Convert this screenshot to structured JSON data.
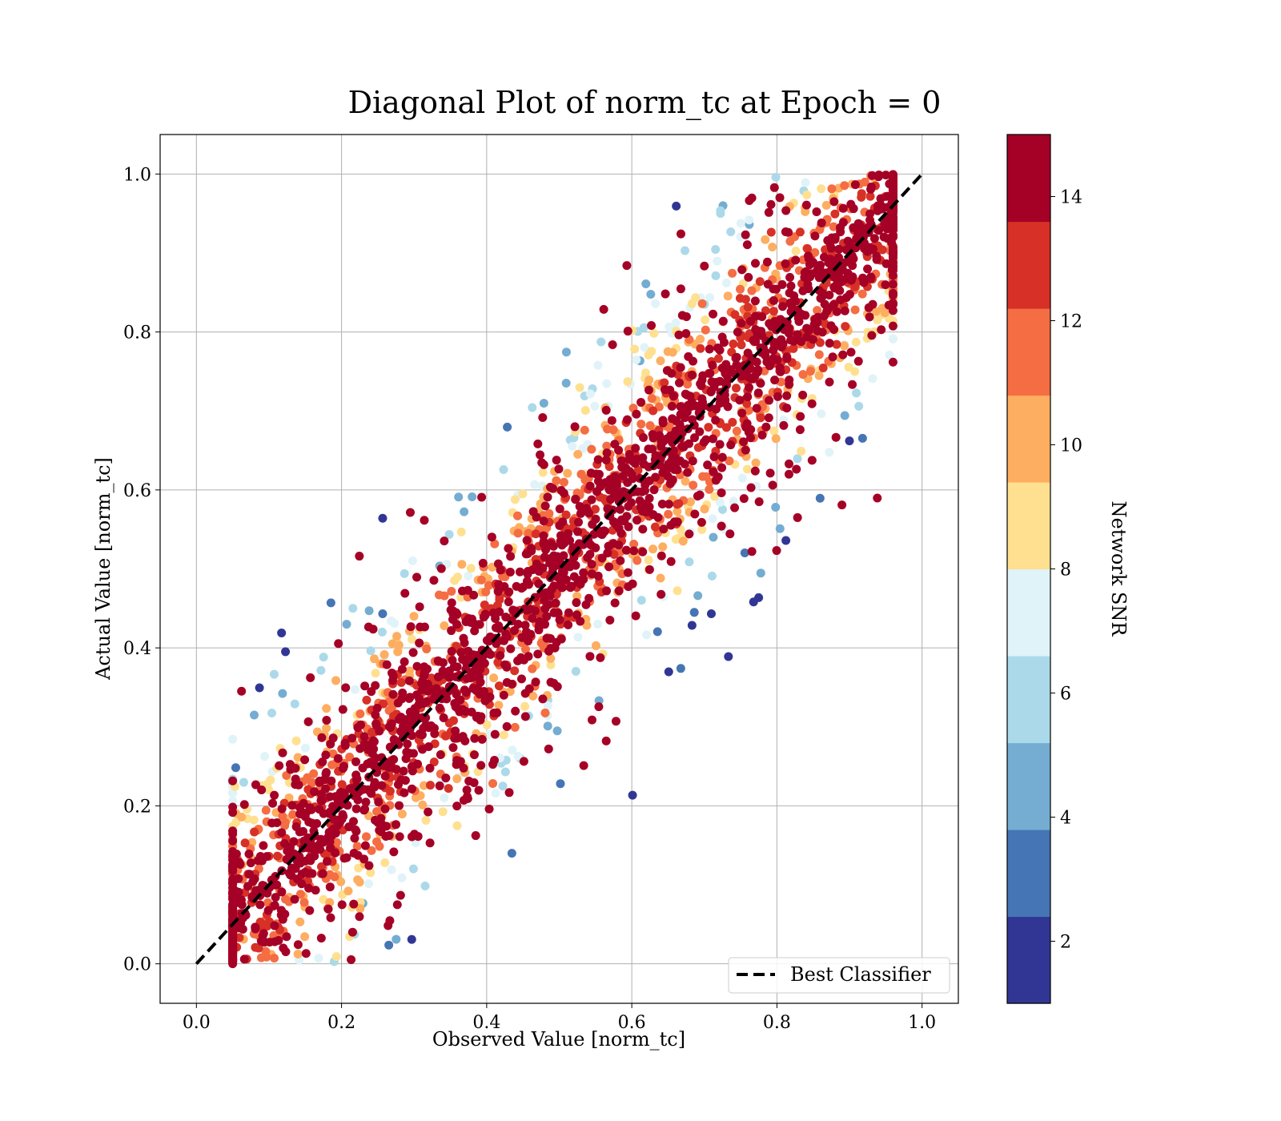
{
  "chart_data": {
    "type": "scatter",
    "title": "Diagonal Plot of norm_tc at Epoch = 0",
    "xlabel": "Observed Value [norm_tc]",
    "ylabel": "Actual Value [norm_tc]",
    "xlim": [
      -0.05,
      1.05
    ],
    "ylim": [
      -0.05,
      1.05
    ],
    "xticks": [
      0.0,
      0.2,
      0.4,
      0.6,
      0.8,
      1.0
    ],
    "yticks": [
      0.0,
      0.2,
      0.4,
      0.6,
      0.8,
      1.0
    ],
    "xtick_labels": [
      "0.0",
      "0.2",
      "0.4",
      "0.6",
      "0.8",
      "1.0"
    ],
    "ytick_labels": [
      "0.0",
      "0.2",
      "0.4",
      "0.6",
      "0.8",
      "1.0"
    ],
    "grid": true,
    "reference_line": {
      "label": "Best Classifier",
      "x": [
        0,
        1
      ],
      "y": [
        0,
        1
      ],
      "style": "dashed",
      "color": "#000000"
    },
    "legend_position": "bottom-right",
    "point_distribution": {
      "description_of_data": "dense scatter band around y = x; high-SNR points concentrated near the diagonal, low-SNR points spread further away",
      "x_range": [
        0.05,
        0.96
      ],
      "y_range": [
        0.0,
        1.0
      ]
    },
    "colorbar": {
      "label": "Network SNR",
      "range": [
        1,
        15
      ],
      "ticks": [
        2,
        4,
        6,
        8,
        10,
        12,
        14
      ],
      "tick_labels": [
        "2",
        "4",
        "6",
        "8",
        "10",
        "12",
        "14"
      ],
      "bins": [
        {
          "from": 1,
          "to": 2.4,
          "color": "#313695"
        },
        {
          "from": 2.4,
          "to": 3.8,
          "color": "#4575b4"
        },
        {
          "from": 3.8,
          "to": 5.2,
          "color": "#74add1"
        },
        {
          "from": 5.2,
          "to": 6.6,
          "color": "#abd9e9"
        },
        {
          "from": 6.6,
          "to": 8.0,
          "color": "#e0f3f8"
        },
        {
          "from": 8.0,
          "to": 9.4,
          "color": "#fee090"
        },
        {
          "from": 9.4,
          "to": 10.8,
          "color": "#fdae61"
        },
        {
          "from": 10.8,
          "to": 12.2,
          "color": "#f46d43"
        },
        {
          "from": 12.2,
          "to": 13.6,
          "color": "#d73027"
        },
        {
          "from": 13.6,
          "to": 15.0,
          "color": "#a50026"
        }
      ]
    }
  }
}
